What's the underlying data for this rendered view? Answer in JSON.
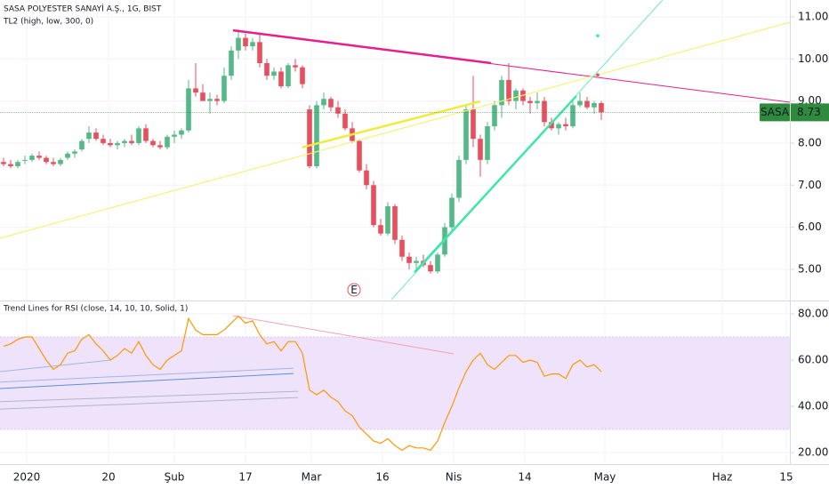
{
  "chart_data": [
    {
      "type": "candlestick",
      "title": "SASA POLYESTER SANAYİ A.Ş., 1G, BIST",
      "subtitle": "TL2 (high, low, 300, 0)",
      "open": [
        7.55,
        7.5,
        7.45,
        7.6,
        7.6,
        7.7,
        7.65,
        7.55,
        7.5,
        7.65,
        7.75,
        7.85,
        8.1,
        8.25,
        8.1,
        8.0,
        7.95,
        8.0,
        8.05,
        8.0,
        8.35,
        8.05,
        7.95,
        7.9,
        8.15,
        8.2,
        8.3,
        9.3,
        9.2,
        9.0,
        9.05,
        9.0,
        9.6,
        10.2,
        10.5,
        10.3,
        10.4,
        9.9,
        9.6,
        9.7,
        9.35,
        9.85,
        9.8,
        8.8,
        7.45,
        8.9,
        9.05,
        8.85,
        8.7,
        8.35,
        8.05,
        7.35,
        7.0,
        6.05,
        5.85,
        6.5,
        5.7,
        5.3,
        5.15,
        5.2,
        5.1,
        4.95,
        5.35,
        6.0,
        6.7,
        7.6,
        8.8,
        8.1,
        7.6,
        8.4,
        8.9,
        9.5,
        9.0,
        9.25,
        9.0,
        8.95,
        9.0,
        8.5,
        8.35,
        8.45,
        8.4,
        8.9,
        9.0,
        8.85,
        8.95
      ],
      "high": [
        7.65,
        7.6,
        7.6,
        7.7,
        7.75,
        7.8,
        7.7,
        7.65,
        7.65,
        7.8,
        7.85,
        8.1,
        8.4,
        8.35,
        8.2,
        8.1,
        8.05,
        8.1,
        8.2,
        8.4,
        8.45,
        8.1,
        8.05,
        8.2,
        8.3,
        8.35,
        9.5,
        9.9,
        9.4,
        9.2,
        9.15,
        9.8,
        10.3,
        10.7,
        10.6,
        10.5,
        10.6,
        10.0,
        9.8,
        9.8,
        9.9,
        10.0,
        9.85,
        8.9,
        9.0,
        9.2,
        9.1,
        9.0,
        8.8,
        8.5,
        8.1,
        7.5,
        7.1,
        6.2,
        6.6,
        6.55,
        5.8,
        5.4,
        5.3,
        5.35,
        5.2,
        5.4,
        6.1,
        6.8,
        7.7,
        8.9,
        9.6,
        8.2,
        8.5,
        9.0,
        9.6,
        9.9,
        9.3,
        9.3,
        9.1,
        9.2,
        9.1,
        8.6,
        8.5,
        8.6,
        9.0,
        9.2,
        9.1,
        9.0,
        9.0
      ],
      "low": [
        7.45,
        7.4,
        7.4,
        7.5,
        7.55,
        7.6,
        7.5,
        7.45,
        7.45,
        7.6,
        7.65,
        7.8,
        8.0,
        8.05,
        7.95,
        7.9,
        7.85,
        7.9,
        7.95,
        7.95,
        8.0,
        7.9,
        7.85,
        7.85,
        8.0,
        8.1,
        8.25,
        9.1,
        9.0,
        8.7,
        8.9,
        8.95,
        9.5,
        10.0,
        10.2,
        10.2,
        9.8,
        9.5,
        9.5,
        9.3,
        9.3,
        9.7,
        9.3,
        7.4,
        7.4,
        8.8,
        8.75,
        8.6,
        8.3,
        8.0,
        7.3,
        6.9,
        6.0,
        5.8,
        5.8,
        5.6,
        5.2,
        5.0,
        5.0,
        5.05,
        4.9,
        4.9,
        5.3,
        5.9,
        6.6,
        7.5,
        7.9,
        7.2,
        7.5,
        8.3,
        8.6,
        8.9,
        8.8,
        8.9,
        8.7,
        8.8,
        8.4,
        8.3,
        8.2,
        8.3,
        8.35,
        8.85,
        8.8,
        8.7,
        8.55
      ],
      "close": [
        7.5,
        7.45,
        7.55,
        7.6,
        7.7,
        7.65,
        7.55,
        7.5,
        7.6,
        7.75,
        7.8,
        8.05,
        8.25,
        8.1,
        8.0,
        7.95,
        8.0,
        8.05,
        8.0,
        8.35,
        8.05,
        7.95,
        7.9,
        8.15,
        8.2,
        8.3,
        9.3,
        9.2,
        9.0,
        9.05,
        9.0,
        9.6,
        10.2,
        10.5,
        10.3,
        10.4,
        9.9,
        9.6,
        9.7,
        9.35,
        9.85,
        9.8,
        9.4,
        7.45,
        8.9,
        9.05,
        8.85,
        8.7,
        8.35,
        8.05,
        7.35,
        7.0,
        6.05,
        5.85,
        6.5,
        5.7,
        5.3,
        5.15,
        5.2,
        5.1,
        4.95,
        5.35,
        6.0,
        6.7,
        7.6,
        8.8,
        8.1,
        7.6,
        8.4,
        8.9,
        9.5,
        9.0,
        9.25,
        9.0,
        8.95,
        9.0,
        8.5,
        8.35,
        8.45,
        8.4,
        8.9,
        9.0,
        8.85,
        8.95,
        8.73
      ],
      "up_color": "#53b987",
      "down_color": "#eb4d5c",
      "xlim": [
        -0.5,
        110.5
      ],
      "xticks": [
        {
          "value": 3.25,
          "label": "2020"
        },
        {
          "value": 14.75,
          "label": "20"
        },
        {
          "value": 24,
          "label": "Şub"
        },
        {
          "value": 34,
          "label": "17"
        },
        {
          "value": 43.25,
          "label": "Mar"
        },
        {
          "value": 53.25,
          "label": "16"
        },
        {
          "value": 63.25,
          "label": "Nis"
        },
        {
          "value": 73.25,
          "label": "14"
        },
        {
          "value": 84.5,
          "label": "May"
        },
        {
          "value": 101,
          "label": "Haz"
        },
        {
          "value": 110,
          "label": "15"
        }
      ],
      "ylim": [
        4.28,
        11.4
      ],
      "yticks": [
        {
          "value": 5,
          "label": "5.00"
        },
        {
          "value": 6,
          "label": "6.00"
        },
        {
          "value": 7,
          "label": "7.00"
        },
        {
          "value": 8,
          "label": "8.00"
        },
        {
          "value": 9,
          "label": "9.00"
        },
        {
          "value": 10,
          "label": "10.00"
        },
        {
          "value": 11,
          "label": "11.00"
        }
      ],
      "grid": true,
      "last_price": {
        "symbol": "SASA",
        "value": 8.73,
        "color": "#2e8b3e"
      },
      "trend_lines": [
        {
          "x": [
            32.25,
            110.5
          ],
          "y": [
            10.68,
            8.97
          ],
          "color": "#e91e8c",
          "width": 1
        },
        {
          "x": [
            32.25,
            68.5
          ],
          "y": [
            10.68,
            9.9
          ],
          "color": "#e91e8c",
          "width": 2.5
        },
        {
          "x": [
            -0.5,
            110.5
          ],
          "y": [
            5.74,
            10.87
          ],
          "color": "#f5f27a",
          "width": 1.2
        },
        {
          "x": [
            42,
            67
          ],
          "y": [
            7.9,
            8.99
          ],
          "color": "#f0ec3c",
          "width": 2.5
        },
        {
          "x": [
            54.5,
            92.6
          ],
          "y": [
            4.28,
            11.4
          ],
          "color": "#6ee7c8",
          "width": 1
        },
        {
          "x": [
            57.75,
            80.5
          ],
          "y": [
            4.93,
            9.12
          ],
          "color": "#3ee6a8",
          "width": 2.5
        }
      ],
      "markers": [
        {
          "x": 83.5,
          "y": 10.55,
          "color": "#3ee6a8"
        },
        {
          "x": 83.5,
          "y": 9.62,
          "color": "#eb4d5c"
        }
      ],
      "earnings": {
        "x": 49.25,
        "label": "E"
      }
    },
    {
      "type": "line",
      "title": "Trend Lines for RSI (close, 14, 10, 10, Solid, 1)",
      "values": [
        66,
        67,
        69,
        70,
        70,
        65,
        60,
        56,
        58,
        63,
        64,
        69,
        71,
        67,
        64,
        60,
        62,
        65,
        63,
        68,
        62,
        58,
        56,
        60,
        62,
        64,
        78,
        73,
        71,
        71,
        71,
        73,
        76,
        79,
        76,
        77,
        71,
        67,
        68,
        64,
        68,
        68,
        63,
        47,
        45,
        47,
        44,
        42,
        38,
        36,
        31,
        28,
        25,
        24,
        26,
        23,
        21,
        23,
        22,
        22,
        21,
        25,
        33,
        40,
        48,
        55,
        60,
        63,
        58,
        56,
        59,
        62,
        62,
        59,
        60,
        59,
        53,
        54,
        54,
        52,
        58,
        60,
        57,
        58,
        55
      ],
      "color": "#ff9800",
      "band": [
        30,
        70
      ],
      "band_color": "#efe3fb",
      "ylim": [
        15,
        85
      ],
      "yticks": [
        {
          "value": 20,
          "label": "20.00"
        },
        {
          "value": 40,
          "label": "40.00"
        },
        {
          "value": 60,
          "label": "60.00"
        },
        {
          "value": 80,
          "label": "80.00"
        }
      ],
      "grid": true,
      "trend_lines": [
        {
          "x": [
            32.25,
            63.25
          ],
          "y": [
            79.2,
            62.7
          ],
          "color": "#f4a3b5",
          "width": 1
        },
        {
          "x": [
            -0.5,
            15.1
          ],
          "y": [
            55,
            60
          ],
          "color": "#9fb7e8",
          "width": 1
        },
        {
          "x": [
            -0.5,
            40.75
          ],
          "y": [
            47.7,
            54.2
          ],
          "color": "#5b8fd6",
          "width": 1
        },
        {
          "x": [
            -0.5,
            40.75
          ],
          "y": [
            50.5,
            56.5
          ],
          "color": "#9fb7e8",
          "width": 1
        },
        {
          "x": [
            -0.5,
            41.4
          ],
          "y": [
            38.8,
            43.8
          ],
          "color": "#b0b6c4",
          "width": 1
        },
        {
          "x": [
            -0.5,
            41.4
          ],
          "y": [
            42,
            46.5
          ],
          "color": "#b0b6c4",
          "width": 1
        }
      ]
    }
  ]
}
